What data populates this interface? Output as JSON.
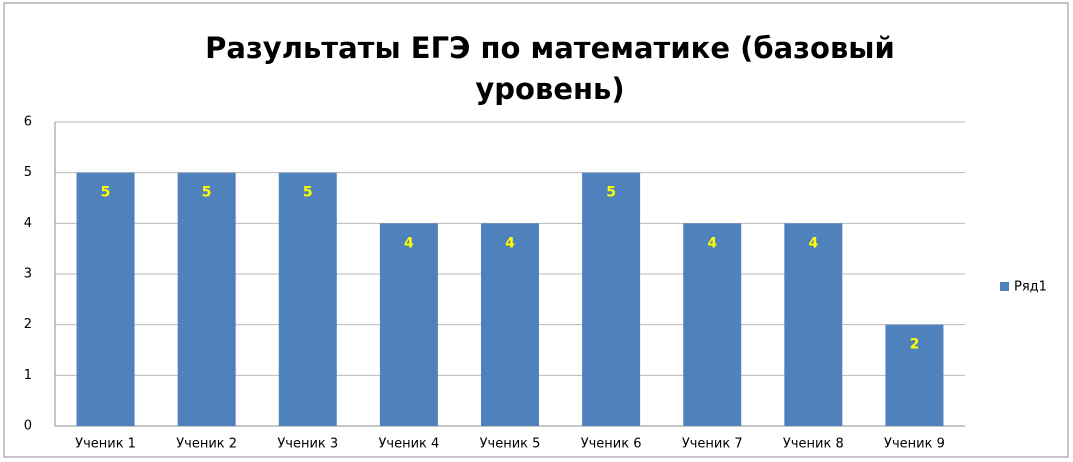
{
  "chart_data": {
    "type": "bar",
    "title": "Разультаты ЕГЭ по математике (базовый уровень)",
    "categories": [
      "Ученик 1",
      "Ученик 2",
      "Ученик 3",
      "Ученик 4",
      "Ученик 5",
      "Ученик 6",
      "Ученик 7",
      "Ученик 8",
      "Ученик 9"
    ],
    "series": [
      {
        "name": "Ряд1",
        "color": "#4f81bd",
        "values": [
          5,
          5,
          5,
          4,
          4,
          5,
          4,
          4,
          2
        ]
      }
    ],
    "ylim": [
      0,
      6
    ],
    "yticks": [
      0,
      1,
      2,
      3,
      4,
      5,
      6
    ],
    "grid": true,
    "legend": "right",
    "value_label_color": "#ffff00"
  }
}
